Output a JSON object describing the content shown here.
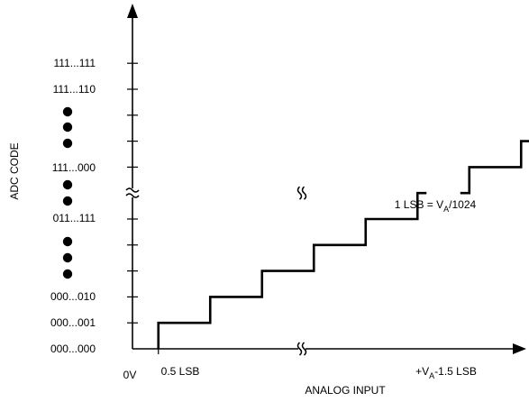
{
  "chart_data": {
    "type": "line",
    "title": "",
    "xlabel": "ANALOG INPUT",
    "ylabel": "ADC CODE",
    "y_codes": [
      {
        "code": "000...000",
        "level": 0
      },
      {
        "code": "000...001",
        "level": 1
      },
      {
        "code": "000...010",
        "level": 2
      },
      {
        "code": "011...111",
        "level": 5
      },
      {
        "code": "111...000",
        "level": 7
      },
      {
        "code": "111...110",
        "level": 10
      },
      {
        "code": "111...111",
        "level": 11
      }
    ],
    "x_tick_labels": {
      "origin": "0V",
      "first_transition": "0.5 LSB",
      "last_transition_prefix": "+V",
      "last_transition_sub": "A",
      "last_transition_suffix": "-1.5 LSB"
    },
    "annotation": {
      "prefix": "1 LSB = V",
      "sub": "A",
      "suffix": "/1024"
    },
    "staircase": {
      "x_steps": [
        0.5,
        1.5,
        2.5,
        3.5,
        4.5,
        5.5,
        6.5,
        7.5,
        8.5,
        9.5,
        10.5
      ],
      "x_end": 13.5,
      "break_between_steps": [
        5.5,
        6.5
      ]
    },
    "axis_breaks": {
      "x": true,
      "y": true
    }
  }
}
